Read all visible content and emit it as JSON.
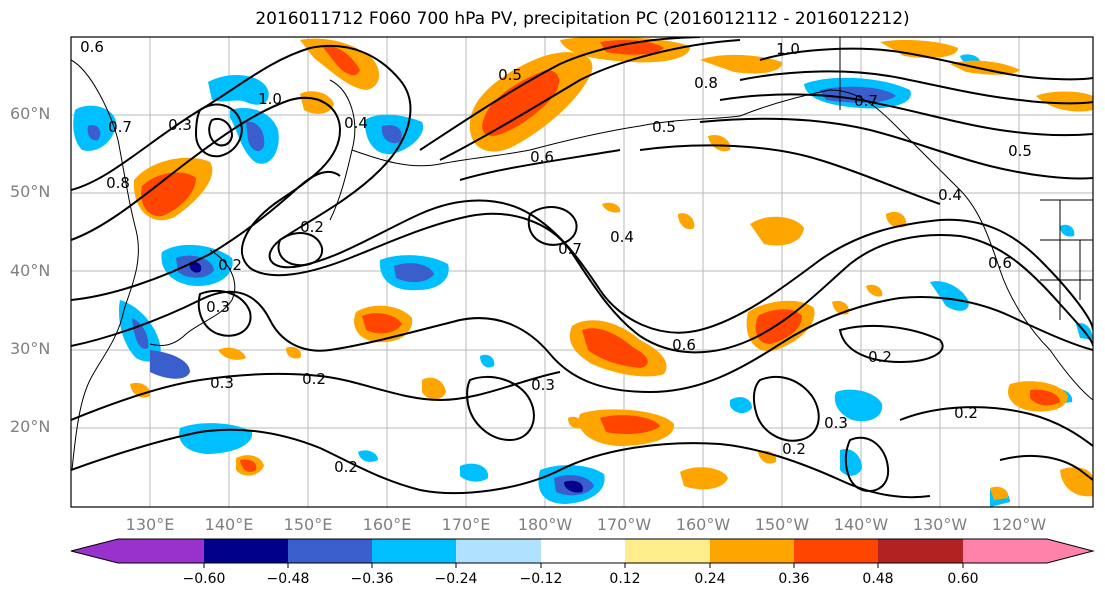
{
  "title": "2016011712 F060 700 hPa PV, precipitation PC (2016012112 - 2016012212)",
  "map": {
    "lat_labels": [
      "60°N",
      "50°N",
      "40°N",
      "30°N",
      "20°N"
    ],
    "lon_labels": [
      "130°E",
      "140°E",
      "150°E",
      "160°E",
      "170°E",
      "180°W",
      "170°W",
      "160°W",
      "150°W",
      "140°W",
      "130°W",
      "120°W"
    ],
    "contour_labels": [
      "0.6",
      "1.0",
      "0.7",
      "0.3",
      "0.8",
      "0.5",
      "0.2",
      "0.4",
      "0.2",
      "0.3",
      "0.6",
      "0.7",
      "0.4",
      "0.6",
      "0.3",
      "0.2",
      "0.2",
      "0.3",
      "0.2",
      "0.3",
      "0.2",
      "0.2",
      "1.0",
      "0.8",
      "0.7",
      "0.5",
      "0.4",
      "0.5",
      "0.6"
    ]
  },
  "colorbar": {
    "ticks": [
      "−0.60",
      "−0.48",
      "−0.36",
      "−0.24",
      "−0.12",
      "0.12",
      "0.24",
      "0.36",
      "0.48",
      "0.60"
    ],
    "colors": [
      "#9932cc",
      "#00008b",
      "#3a5fcd",
      "#00bfff",
      "#b0e2ff",
      "#ffffff",
      "#ffec8b",
      "#ffa500",
      "#ff4500",
      "#b22222",
      "#ff82ab"
    ]
  }
}
